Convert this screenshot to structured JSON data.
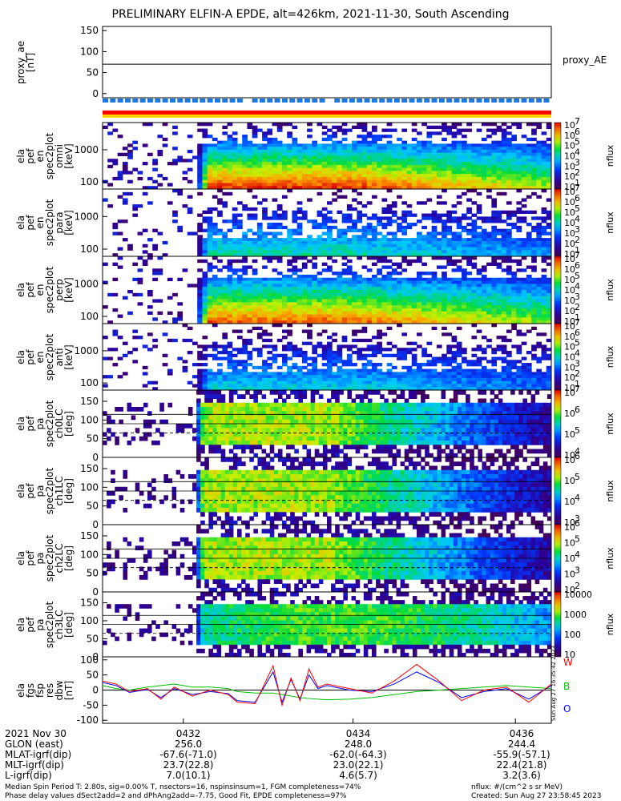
{
  "title": "PRELIMINARY ELFIN-A EPDE, alt=426km, 2021-11-30, South Ascending",
  "proxy_label": "proxy_AE",
  "panels": [
    {
      "ylabel": [
        "proxy_ae",
        "[nT]"
      ]
    },
    {
      "ylabel": [
        "ela",
        "pef",
        "en",
        "spec2plot",
        "omni",
        "[keV]"
      ]
    },
    {
      "ylabel": [
        "ela",
        "pef",
        "en",
        "spec2plot",
        "para",
        "[keV]"
      ]
    },
    {
      "ylabel": [
        "ela",
        "pef",
        "en",
        "spec2plot",
        "perp",
        "[keV]"
      ]
    },
    {
      "ylabel": [
        "ela",
        "pef",
        "en",
        "spec2plot",
        "anti",
        "[keV]"
      ]
    },
    {
      "ylabel": [
        "ela",
        "pef",
        "pa",
        "spec2plot",
        "ch0LC",
        "[deg]"
      ]
    },
    {
      "ylabel": [
        "ela",
        "pef",
        "pa",
        "spec2plot",
        "ch1LC",
        "[deg]"
      ]
    },
    {
      "ylabel": [
        "ela",
        "pef",
        "pa",
        "spec2plot",
        "ch2LC",
        "[deg]"
      ]
    },
    {
      "ylabel": [
        "ela",
        "pef",
        "pa",
        "spec2plot",
        "ch3LC",
        "[deg]"
      ]
    },
    {
      "ylabel": [
        "ela",
        "fgs",
        "fsp",
        "res",
        "dbw",
        "[nT]"
      ]
    }
  ],
  "cb_label": "nflux",
  "legend": {
    "w": "W",
    "b": "B",
    "o": "O"
  },
  "colors": {
    "w": "#ff0000",
    "b": "#00c000",
    "o": "#0000ff",
    "blue_bar": "#1f77e0",
    "red_bar": "#ff0000",
    "yellow_bar": "#ffd700"
  },
  "footer": {
    "rows": [
      "2021 Nov 30",
      "GLON (east)",
      "MLAT-igrf(dip)",
      "MLT-igrf(dip)",
      "L-igrf(dip)"
    ],
    "columns": [
      {
        "time": "0432",
        "glon": "256.0",
        "mlat": "-67.6(-71.0)",
        "mlt": "23.7(22.8)",
        "l": "7.0(10.1)"
      },
      {
        "time": "0434",
        "glon": "248.0",
        "mlat": "-62.0(-64.3)",
        "mlt": "23.0(22.1)",
        "l": "4.6(5.7)"
      },
      {
        "time": "0436",
        "glon": "244.4",
        "mlat": "-55.9(-57.1)",
        "mlt": "22.4(21.8)",
        "l": "3.2(3.6)"
      }
    ],
    "note1": "Median Spin Period T: 2.80s, sig=0.00% T, nsectors=16, nspinsinsum=1, FGM completeness=74%",
    "note2": "Phase delay values dSect2add=2 and dPhAng2add=-7.75, Good Fit, EPDE completeness=97%",
    "units": "nflux: #/(cm^2 s sr MeV)",
    "created": "Created: Sun Aug 27 23:58:45 2023",
    "side_stamp": "Sun Aug 27 16:35:42 2023"
  },
  "chart_data": {
    "type": "heatmap",
    "title": "PRELIMINARY ELFIN-A EPDE, alt=426km, 2021-11-30, South Ascending",
    "x_ticks": [
      "0432",
      "0434",
      "0436"
    ],
    "proxy_ae": {
      "ylim": [
        -10,
        160
      ],
      "yticks": [
        "150",
        "100",
        "50",
        "0"
      ],
      "value": 70
    },
    "energy_yticks": [
      "1000",
      "100"
    ],
    "energy_ylim_keV": [
      60,
      7000
    ],
    "pa_yticks": [
      "150",
      "100",
      "50",
      "0"
    ],
    "pa_ylim": [
      0,
      180
    ],
    "colorbars": [
      {
        "labels": [
          "10",
          "10",
          "10",
          "10",
          "10",
          "10",
          "10"
        ],
        "exps": [
          "7",
          "6",
          "5",
          "4",
          "3",
          "2",
          "1"
        ]
      },
      {
        "labels": [
          "10",
          "10",
          "10",
          "10",
          "10",
          "10",
          "10"
        ],
        "exps": [
          "7",
          "6",
          "5",
          "4",
          "3",
          "2",
          "1"
        ]
      },
      {
        "labels": [
          "10",
          "10",
          "10",
          "10",
          "10",
          "10",
          "10"
        ],
        "exps": [
          "7",
          "6",
          "5",
          "4",
          "3",
          "2",
          "1"
        ]
      },
      {
        "labels": [
          "10",
          "10",
          "10",
          "10",
          "10",
          "10",
          "10"
        ],
        "exps": [
          "7",
          "6",
          "5",
          "4",
          "3",
          "2",
          "1"
        ]
      },
      {
        "labels": [
          "10",
          "10",
          "10",
          "10"
        ],
        "exps": [
          "7",
          "6",
          "5",
          "4"
        ]
      },
      {
        "labels": [
          "10",
          "10",
          "10",
          "10"
        ],
        "exps": [
          "6",
          "5",
          "4",
          "3"
        ]
      },
      {
        "labels": [
          "10",
          "10",
          "10",
          "10",
          "10"
        ],
        "exps": [
          "6",
          "5",
          "4",
          "3",
          "2"
        ]
      },
      {
        "labels": [
          "10000",
          "1000",
          "100",
          "10"
        ],
        "exps": [
          "",
          "",
          "",
          ""
        ]
      }
    ],
    "dbw": {
      "ylim": [
        -110,
        110
      ],
      "yticks": [
        "100",
        "50",
        "0",
        "-50",
        "-100"
      ],
      "time_frac": [
        0.0,
        0.03,
        0.06,
        0.1,
        0.13,
        0.16,
        0.2,
        0.24,
        0.28,
        0.3,
        0.34,
        0.38,
        0.4,
        0.42,
        0.44,
        0.46,
        0.48,
        0.5,
        0.55,
        0.6,
        0.65,
        0.7,
        0.75,
        0.8,
        0.85,
        0.9,
        0.95,
        1.0
      ],
      "W": [
        30,
        20,
        -5,
        5,
        -30,
        10,
        -20,
        0,
        -15,
        -40,
        -45,
        80,
        -50,
        40,
        -35,
        70,
        10,
        20,
        5,
        -10,
        30,
        85,
        30,
        -35,
        0,
        10,
        -40,
        20
      ],
      "B": [
        15,
        5,
        0,
        10,
        15,
        20,
        10,
        10,
        5,
        -5,
        -10,
        -10,
        -15,
        -20,
        -25,
        -28,
        -30,
        -32,
        -30,
        -25,
        -15,
        -5,
        0,
        5,
        10,
        15,
        10,
        5
      ],
      "O": [
        25,
        15,
        -8,
        2,
        -25,
        5,
        -15,
        -5,
        -12,
        -35,
        -40,
        60,
        -40,
        35,
        -30,
        50,
        5,
        15,
        0,
        -5,
        20,
        60,
        25,
        -25,
        -5,
        5,
        -30,
        15
      ]
    }
  }
}
